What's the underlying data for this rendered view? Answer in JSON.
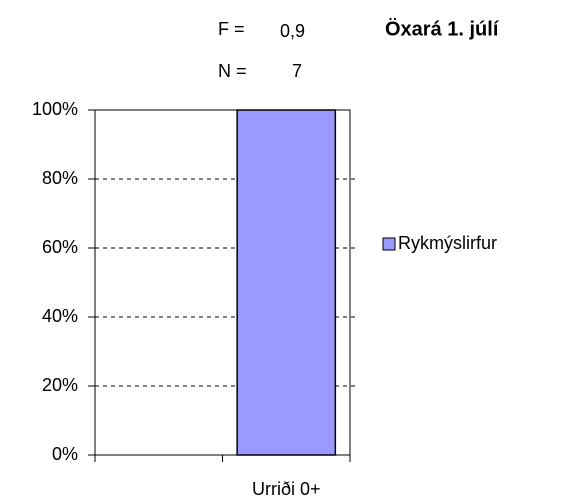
{
  "chart_data": {
    "type": "bar",
    "title": "Öxará 1. júlí",
    "annotations": [
      "F =",
      "0,9",
      "N =",
      "7"
    ],
    "categories": [
      null,
      "Urriði 0+"
    ],
    "series": [
      {
        "name": "Rykmýslirfur",
        "color": "#9999ff",
        "values": [
          null,
          100
        ]
      }
    ],
    "ylim": [
      0,
      100
    ],
    "yticks": [
      {
        "value": 0,
        "label": "0%"
      },
      {
        "value": 20,
        "label": "20%"
      },
      {
        "value": 40,
        "label": "40%"
      },
      {
        "value": 60,
        "label": "60%"
      },
      {
        "value": 80,
        "label": "80%"
      },
      {
        "value": 100,
        "label": "100%"
      }
    ],
    "grid": true,
    "legend": "right"
  }
}
